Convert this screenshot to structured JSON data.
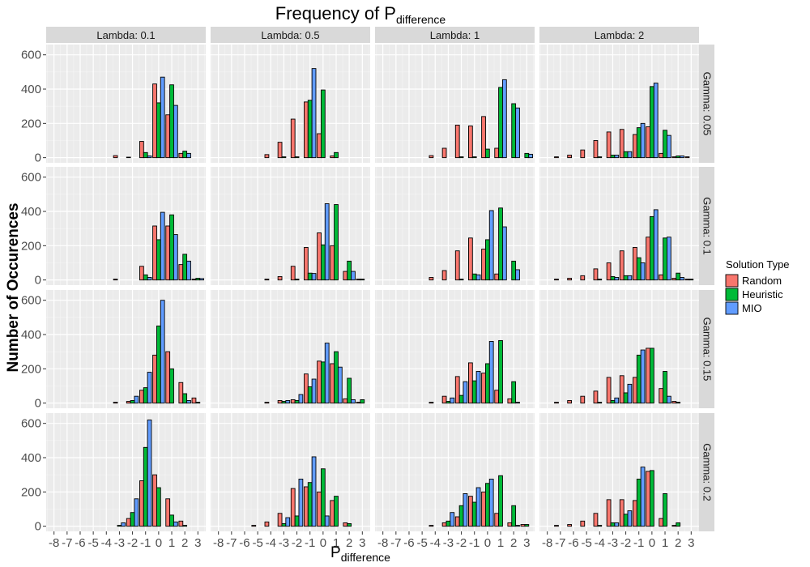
{
  "chart_data": {
    "type": "bar",
    "title_main": "Frequency of P",
    "title_sub": "difference",
    "xlabel_main": "P",
    "xlabel_sub": "difference",
    "ylabel": "Number of Occurences",
    "col_labels": [
      "Lambda: 0.1",
      "Lambda: 0.5",
      "Lambda: 1",
      "Lambda: 2"
    ],
    "row_labels": [
      "Gamma: 0.05",
      "Gamma: 0.1",
      "Gamma: 0.15",
      "Gamma: 0.2"
    ],
    "x_ticks": [
      -8,
      -7,
      -6,
      -5,
      -4,
      -3,
      -2,
      -1,
      0,
      1,
      2,
      3
    ],
    "xlim": [
      -8.6,
      3.6
    ],
    "y_ticks": [
      0,
      200,
      400,
      600
    ],
    "ylim": [
      -30,
      660
    ],
    "grid": true,
    "legend": {
      "title": "Solution Type",
      "position": "right",
      "items": [
        {
          "name": "Random",
          "color": "#F8766D"
        },
        {
          "name": "Heuristic",
          "color": "#00BA38"
        },
        {
          "name": "MIO",
          "color": "#619CFF"
        }
      ]
    },
    "series_colors": [
      "#F8766D",
      "#00BA38",
      "#619CFF"
    ],
    "panels": [
      {
        "row": 0,
        "col": 0,
        "data": [
          [
            -3,
            12,
            0,
            0
          ],
          [
            -2,
            3,
            0,
            0
          ],
          [
            -1,
            95,
            30,
            10
          ],
          [
            0,
            430,
            320,
            470
          ],
          [
            1,
            250,
            425,
            305
          ],
          [
            2,
            25,
            38,
            25
          ],
          [
            3,
            0,
            0,
            0
          ]
        ]
      },
      {
        "row": 0,
        "col": 1,
        "data": [
          [
            -4,
            18,
            0,
            0
          ],
          [
            -3,
            90,
            5,
            0
          ],
          [
            -2,
            225,
            5,
            0
          ],
          [
            -1,
            325,
            335,
            520
          ],
          [
            0,
            140,
            395,
            0
          ],
          [
            1,
            10,
            30,
            0
          ],
          [
            2,
            0,
            0,
            0
          ]
        ]
      },
      {
        "row": 0,
        "col": 2,
        "data": [
          [
            -4,
            12,
            0,
            0
          ],
          [
            -3,
            55,
            0,
            0
          ],
          [
            -2,
            190,
            5,
            0
          ],
          [
            -1,
            185,
            5,
            0
          ],
          [
            0,
            240,
            50,
            0
          ],
          [
            1,
            55,
            410,
            455
          ],
          [
            2,
            0,
            315,
            290
          ],
          [
            3,
            0,
            25,
            20
          ]
        ]
      },
      {
        "row": 0,
        "col": 3,
        "data": [
          [
            -7,
            5,
            0,
            0
          ],
          [
            -6,
            15,
            0,
            0
          ],
          [
            -5,
            45,
            0,
            0
          ],
          [
            -4,
            100,
            5,
            0
          ],
          [
            -3,
            150,
            15,
            15
          ],
          [
            -2,
            165,
            35,
            35
          ],
          [
            -1,
            135,
            175,
            200
          ],
          [
            0,
            180,
            415,
            435
          ],
          [
            1,
            25,
            160,
            130
          ],
          [
            2,
            5,
            10,
            10
          ],
          [
            3,
            5,
            0,
            0
          ]
        ]
      },
      {
        "row": 1,
        "col": 0,
        "data": [
          [
            -3,
            5,
            0,
            0
          ],
          [
            -2,
            0,
            0,
            0
          ],
          [
            -1,
            80,
            30,
            15
          ],
          [
            0,
            315,
            235,
            395
          ],
          [
            1,
            315,
            380,
            265
          ],
          [
            2,
            90,
            150,
            110
          ],
          [
            3,
            5,
            10,
            8
          ]
        ]
      },
      {
        "row": 1,
        "col": 1,
        "data": [
          [
            -4,
            5,
            0,
            0
          ],
          [
            -3,
            20,
            0,
            0
          ],
          [
            -2,
            80,
            5,
            0
          ],
          [
            -1,
            190,
            40,
            38
          ],
          [
            0,
            275,
            205,
            445
          ],
          [
            1,
            200,
            440,
            0
          ],
          [
            2,
            50,
            110,
            50
          ],
          [
            3,
            5,
            5,
            0
          ]
        ]
      },
      {
        "row": 1,
        "col": 2,
        "data": [
          [
            -4,
            15,
            0,
            0
          ],
          [
            -3,
            55,
            0,
            0
          ],
          [
            -2,
            170,
            5,
            0
          ],
          [
            -1,
            245,
            35,
            30
          ],
          [
            0,
            180,
            235,
            405
          ],
          [
            1,
            35,
            420,
            310
          ],
          [
            2,
            0,
            110,
            60
          ]
        ]
      },
      {
        "row": 1,
        "col": 3,
        "data": [
          [
            -7,
            5,
            0,
            0
          ],
          [
            -6,
            10,
            0,
            0
          ],
          [
            -5,
            25,
            0,
            0
          ],
          [
            -4,
            65,
            5,
            0
          ],
          [
            -3,
            100,
            20,
            15
          ],
          [
            -2,
            170,
            25,
            25
          ],
          [
            -1,
            190,
            130,
            100
          ],
          [
            0,
            250,
            370,
            410
          ],
          [
            1,
            30,
            245,
            250
          ],
          [
            2,
            10,
            40,
            15
          ],
          [
            3,
            5,
            5,
            0
          ]
        ]
      },
      {
        "row": 2,
        "col": 0,
        "data": [
          [
            -3,
            5,
            0,
            0
          ],
          [
            -2,
            10,
            15,
            40
          ],
          [
            -1,
            75,
            90,
            180
          ],
          [
            0,
            280,
            450,
            600
          ],
          [
            1,
            300,
            200,
            0
          ],
          [
            2,
            120,
            55,
            15
          ],
          [
            3,
            30,
            5,
            0
          ]
        ]
      },
      {
        "row": 2,
        "col": 1,
        "data": [
          [
            -4,
            5,
            0,
            0
          ],
          [
            -3,
            15,
            10,
            15
          ],
          [
            -2,
            20,
            15,
            50
          ],
          [
            -1,
            170,
            95,
            140
          ],
          [
            0,
            245,
            240,
            350
          ],
          [
            1,
            230,
            300,
            210
          ],
          [
            2,
            25,
            145,
            20
          ],
          [
            3,
            5,
            20,
            0
          ]
        ]
      },
      {
        "row": 2,
        "col": 2,
        "data": [
          [
            -4,
            5,
            0,
            0
          ],
          [
            -3,
            40,
            10,
            30
          ],
          [
            -2,
            155,
            45,
            125
          ],
          [
            -1,
            235,
            130,
            185
          ],
          [
            0,
            175,
            230,
            360
          ],
          [
            1,
            75,
            365,
            0
          ],
          [
            2,
            25,
            125,
            5
          ]
        ]
      },
      {
        "row": 2,
        "col": 3,
        "data": [
          [
            -7,
            5,
            0,
            0
          ],
          [
            -6,
            15,
            0,
            0
          ],
          [
            -5,
            40,
            0,
            0
          ],
          [
            -4,
            70,
            5,
            0
          ],
          [
            -3,
            150,
            15,
            30
          ],
          [
            -2,
            160,
            60,
            110
          ],
          [
            -1,
            150,
            280,
            310
          ],
          [
            0,
            320,
            320,
            0
          ],
          [
            1,
            85,
            185,
            40
          ],
          [
            2,
            10,
            5,
            0
          ]
        ]
      },
      {
        "row": 3,
        "col": 0,
        "data": [
          [
            -3,
            0,
            5,
            20
          ],
          [
            -2,
            45,
            80,
            160
          ],
          [
            -1,
            265,
            460,
            620
          ],
          [
            0,
            300,
            225,
            0
          ],
          [
            1,
            160,
            65,
            25
          ],
          [
            2,
            30,
            5,
            0
          ]
        ]
      },
      {
        "row": 3,
        "col": 1,
        "data": [
          [
            -5,
            5,
            0,
            0
          ],
          [
            -4,
            25,
            0,
            0
          ],
          [
            -3,
            75,
            15,
            50
          ],
          [
            -2,
            220,
            60,
            275
          ],
          [
            -1,
            230,
            255,
            405
          ],
          [
            0,
            200,
            335,
            60
          ],
          [
            1,
            150,
            175,
            0
          ],
          [
            2,
            20,
            15,
            0
          ]
        ]
      },
      {
        "row": 3,
        "col": 2,
        "data": [
          [
            -4,
            5,
            0,
            0
          ],
          [
            -3,
            20,
            30,
            80
          ],
          [
            -2,
            55,
            120,
            190
          ],
          [
            -1,
            175,
            140,
            225
          ],
          [
            0,
            200,
            250,
            275
          ],
          [
            1,
            75,
            295,
            0
          ],
          [
            2,
            20,
            120,
            5
          ],
          [
            3,
            10,
            10,
            0
          ]
        ]
      },
      {
        "row": 3,
        "col": 3,
        "data": [
          [
            -7,
            5,
            0,
            0
          ],
          [
            -6,
            10,
            0,
            0
          ],
          [
            -5,
            30,
            0,
            0
          ],
          [
            -4,
            75,
            5,
            0
          ],
          [
            -3,
            155,
            20,
            20
          ],
          [
            -2,
            155,
            70,
            90
          ],
          [
            -1,
            150,
            275,
            345
          ],
          [
            0,
            320,
            325,
            0
          ],
          [
            1,
            45,
            190,
            0
          ],
          [
            2,
            5,
            20,
            0
          ]
        ]
      }
    ]
  }
}
